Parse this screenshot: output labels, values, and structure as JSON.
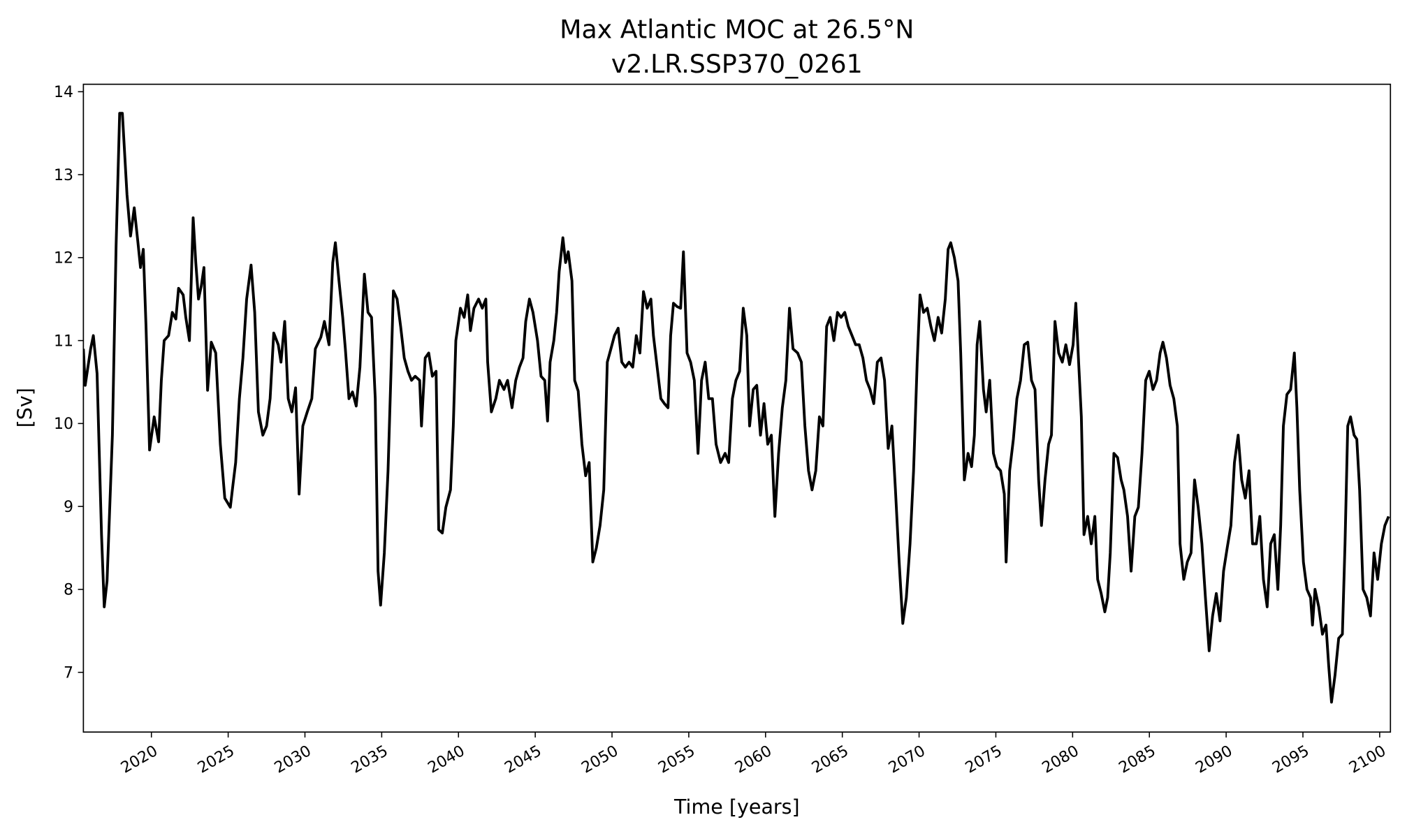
{
  "chart_data": {
    "type": "line",
    "title": "Max Atlantic MOC at 26.5°N",
    "subtitle": "v2.LR.SSP370_0261",
    "xlabel": "Time [years]",
    "ylabel": "[Sv]",
    "xlim": [
      2015.57,
      2100.7
    ],
    "ylim": [
      6.28,
      14.09
    ],
    "grid": false,
    "line_color": "#000000",
    "xticks": [
      2020,
      2025,
      2030,
      2035,
      2040,
      2045,
      2050,
      2055,
      2060,
      2065,
      2070,
      2075,
      2080,
      2085,
      2090,
      2095,
      2100
    ],
    "yticks": [
      7,
      8,
      9,
      10,
      11,
      12,
      13,
      14
    ],
    "x": [
      2015.57,
      2015.69,
      2016.04,
      2016.22,
      2016.46,
      2016.75,
      2016.93,
      2017.11,
      2017.46,
      2017.7,
      2017.93,
      2018.11,
      2018.41,
      2018.64,
      2018.88,
      2019.11,
      2019.29,
      2019.47,
      2019.65,
      2019.88,
      2020.18,
      2020.47,
      2020.65,
      2020.83,
      2021.12,
      2021.36,
      2021.59,
      2021.77,
      2022.07,
      2022.24,
      2022.48,
      2022.72,
      2022.89,
      2023.07,
      2023.25,
      2023.42,
      2023.66,
      2023.9,
      2024.19,
      2024.49,
      2024.78,
      2025.14,
      2025.31,
      2025.49,
      2025.73,
      2025.96,
      2026.2,
      2026.49,
      2026.73,
      2026.97,
      2027.26,
      2027.5,
      2027.73,
      2027.97,
      2028.26,
      2028.44,
      2028.68,
      2028.91,
      2029.15,
      2029.39,
      2029.62,
      2029.86,
      2030.15,
      2030.45,
      2030.68,
      2031.04,
      2031.27,
      2031.57,
      2031.81,
      2031.98,
      2032.22,
      2032.46,
      2032.63,
      2032.87,
      2033.1,
      2033.34,
      2033.58,
      2033.87,
      2034.11,
      2034.34,
      2034.58,
      2034.76,
      2034.93,
      2035.17,
      2035.41,
      2035.64,
      2035.76,
      2036.0,
      2036.23,
      2036.47,
      2036.71,
      2036.94,
      2037.18,
      2037.47,
      2037.59,
      2037.83,
      2038.06,
      2038.3,
      2038.54,
      2038.71,
      2038.95,
      2039.18,
      2039.48,
      2039.66,
      2039.83,
      2040.13,
      2040.37,
      2040.6,
      2040.78,
      2041.01,
      2041.31,
      2041.55,
      2041.78,
      2041.9,
      2042.14,
      2042.43,
      2042.67,
      2042.96,
      2043.2,
      2043.49,
      2043.73,
      2043.97,
      2044.2,
      2044.38,
      2044.62,
      2044.85,
      2045.15,
      2045.38,
      2045.62,
      2045.8,
      2045.97,
      2046.21,
      2046.39,
      2046.56,
      2046.8,
      2046.98,
      2047.15,
      2047.39,
      2047.57,
      2047.8,
      2048.04,
      2048.28,
      2048.51,
      2048.75,
      2048.98,
      2049.22,
      2049.46,
      2049.69,
      2049.93,
      2050.16,
      2050.4,
      2050.64,
      2050.87,
      2051.11,
      2051.35,
      2051.58,
      2051.82,
      2052.05,
      2052.29,
      2052.53,
      2052.7,
      2052.94,
      2053.18,
      2053.41,
      2053.65,
      2053.82,
      2054.0,
      2054.24,
      2054.47,
      2054.65,
      2054.89,
      2055.12,
      2055.36,
      2055.6,
      2055.83,
      2056.07,
      2056.3,
      2056.54,
      2056.78,
      2057.07,
      2057.37,
      2057.6,
      2057.84,
      2058.07,
      2058.31,
      2058.55,
      2058.78,
      2058.96,
      2059.2,
      2059.43,
      2059.67,
      2059.9,
      2060.14,
      2060.38,
      2060.61,
      2060.85,
      2061.09,
      2061.32,
      2061.56,
      2061.79,
      2062.09,
      2062.33,
      2062.56,
      2062.8,
      2063.03,
      2063.27,
      2063.51,
      2063.74,
      2063.98,
      2064.21,
      2064.45,
      2064.69,
      2064.92,
      2065.16,
      2065.39,
      2065.63,
      2065.87,
      2066.1,
      2066.34,
      2066.57,
      2066.81,
      2067.05,
      2067.28,
      2067.52,
      2067.75,
      2067.99,
      2068.23,
      2068.46,
      2068.7,
      2068.94,
      2069.17,
      2069.41,
      2069.64,
      2069.88,
      2070.06,
      2070.29,
      2070.53,
      2070.77,
      2071.0,
      2071.24,
      2071.47,
      2071.71,
      2071.89,
      2072.06,
      2072.3,
      2072.54,
      2072.71,
      2072.95,
      2073.19,
      2073.42,
      2073.6,
      2073.78,
      2073.95,
      2074.19,
      2074.37,
      2074.6,
      2074.84,
      2075.07,
      2075.31,
      2075.55,
      2075.67,
      2075.9,
      2076.14,
      2076.37,
      2076.61,
      2076.85,
      2077.08,
      2077.32,
      2077.55,
      2077.79,
      2077.97,
      2078.2,
      2078.44,
      2078.62,
      2078.85,
      2079.09,
      2079.33,
      2079.56,
      2079.8,
      2080.03,
      2080.21,
      2080.39,
      2080.57,
      2080.74,
      2080.98,
      2081.21,
      2081.45,
      2081.63,
      2081.86,
      2082.1,
      2082.28,
      2082.45,
      2082.69,
      2082.93,
      2083.16,
      2083.34,
      2083.58,
      2083.81,
      2084.05,
      2084.28,
      2084.52,
      2084.76,
      2084.99,
      2085.23,
      2085.47,
      2085.7,
      2085.88,
      2086.11,
      2086.35,
      2086.59,
      2086.82,
      2087.0,
      2087.24,
      2087.47,
      2087.71,
      2087.94,
      2088.18,
      2088.42,
      2088.65,
      2088.89,
      2089.12,
      2089.36,
      2089.6,
      2089.83,
      2090.07,
      2090.31,
      2090.54,
      2090.78,
      2091.01,
      2091.25,
      2091.49,
      2091.72,
      2091.96,
      2092.19,
      2092.43,
      2092.67,
      2092.9,
      2093.14,
      2093.37,
      2093.55,
      2093.73,
      2093.96,
      2094.2,
      2094.44,
      2094.61,
      2094.79,
      2095.03,
      2095.26,
      2095.5,
      2095.62,
      2095.79,
      2096.03,
      2096.27,
      2096.5,
      2096.68,
      2096.86,
      2097.09,
      2097.33,
      2097.57,
      2097.74,
      2097.92,
      2098.1,
      2098.33,
      2098.51,
      2098.69,
      2098.92,
      2099.16,
      2099.4,
      2099.63,
      2099.87,
      2100.11,
      2100.34,
      2100.58
    ],
    "y": [
      10.9,
      10.46,
      10.9,
      11.06,
      10.6,
      8.66,
      7.79,
      8.1,
      9.86,
      12.15,
      13.74,
      13.74,
      12.76,
      12.26,
      12.6,
      12.2,
      11.88,
      12.1,
      11.17,
      9.68,
      10.08,
      9.78,
      10.52,
      11.0,
      11.06,
      11.34,
      11.26,
      11.63,
      11.55,
      11.28,
      11.0,
      12.48,
      11.94,
      11.5,
      11.66,
      11.88,
      10.4,
      10.98,
      10.85,
      9.75,
      9.1,
      8.99,
      9.26,
      9.53,
      10.3,
      10.79,
      11.5,
      11.91,
      11.34,
      10.14,
      9.86,
      9.97,
      10.3,
      11.09,
      10.95,
      10.74,
      11.23,
      10.3,
      10.14,
      10.43,
      9.15,
      9.97,
      10.14,
      10.3,
      10.9,
      11.04,
      11.23,
      10.95,
      11.94,
      12.18,
      11.72,
      11.28,
      10.9,
      10.3,
      10.38,
      10.21,
      10.68,
      11.8,
      11.34,
      11.28,
      10.3,
      8.22,
      7.81,
      8.44,
      9.43,
      10.85,
      11.6,
      11.5,
      11.17,
      10.79,
      10.63,
      10.52,
      10.57,
      10.52,
      9.97,
      10.79,
      10.85,
      10.57,
      10.63,
      8.72,
      8.68,
      8.99,
      9.2,
      9.97,
      11.0,
      11.39,
      11.28,
      11.55,
      11.12,
      11.39,
      11.5,
      11.39,
      11.5,
      10.74,
      10.14,
      10.3,
      10.52,
      10.41,
      10.52,
      10.19,
      10.52,
      10.68,
      10.79,
      11.23,
      11.5,
      11.34,
      11.0,
      10.57,
      10.52,
      10.03,
      10.74,
      11.0,
      11.34,
      11.83,
      12.24,
      11.94,
      12.07,
      11.72,
      10.52,
      10.39,
      9.75,
      9.37,
      9.53,
      8.33,
      8.5,
      8.77,
      9.2,
      10.74,
      10.9,
      11.06,
      11.15,
      10.74,
      10.68,
      10.74,
      10.68,
      11.06,
      10.85,
      11.59,
      11.39,
      11.5,
      11.06,
      10.68,
      10.3,
      10.24,
      10.19,
      11.06,
      11.45,
      11.41,
      11.39,
      12.07,
      10.85,
      10.74,
      10.52,
      9.64,
      10.52,
      10.74,
      10.3,
      10.3,
      9.75,
      9.53,
      9.64,
      9.53,
      10.3,
      10.52,
      10.63,
      11.39,
      11.06,
      9.97,
      10.41,
      10.46,
      9.86,
      10.24,
      9.75,
      9.86,
      8.88,
      9.64,
      10.19,
      10.52,
      11.39,
      10.9,
      10.85,
      10.74,
      9.97,
      9.43,
      9.2,
      9.43,
      10.08,
      9.97,
      11.17,
      11.28,
      11.0,
      11.34,
      11.28,
      11.34,
      11.17,
      11.06,
      10.95,
      10.95,
      10.79,
      10.52,
      10.41,
      10.24,
      10.74,
      10.79,
      10.52,
      9.7,
      9.97,
      9.2,
      8.33,
      7.59,
      7.9,
      8.55,
      9.43,
      10.74,
      11.55,
      11.34,
      11.39,
      11.17,
      11.0,
      11.28,
      11.09,
      11.5,
      12.1,
      12.18,
      12.0,
      11.72,
      10.85,
      9.32,
      9.64,
      9.48,
      9.86,
      10.95,
      11.23,
      10.41,
      10.14,
      10.52,
      9.64,
      9.48,
      9.43,
      9.15,
      8.33,
      9.43,
      9.81,
      10.3,
      10.52,
      10.95,
      10.98,
      10.52,
      10.41,
      9.32,
      8.77,
      9.32,
      9.75,
      9.86,
      11.23,
      10.85,
      10.74,
      10.95,
      10.71,
      10.95,
      11.45,
      10.74,
      10.08,
      8.66,
      8.88,
      8.55,
      8.88,
      8.12,
      7.95,
      7.73,
      7.9,
      8.44,
      9.64,
      9.59,
      9.32,
      9.2,
      8.88,
      8.22,
      8.88,
      8.99,
      9.64,
      10.52,
      10.63,
      10.41,
      10.52,
      10.85,
      10.98,
      10.79,
      10.46,
      10.3,
      9.97,
      8.55,
      8.12,
      8.33,
      8.44,
      9.32,
      8.99,
      8.55,
      7.9,
      7.26,
      7.68,
      7.95,
      7.62,
      8.22,
      8.5,
      8.77,
      9.53,
      9.86,
      9.32,
      9.1,
      9.43,
      8.55,
      8.55,
      8.88,
      8.12,
      7.79,
      8.55,
      8.66,
      8.0,
      8.77,
      9.97,
      10.35,
      10.41,
      10.85,
      10.19,
      9.2,
      8.33,
      8.0,
      7.9,
      7.57,
      8.0,
      7.79,
      7.46,
      7.57,
      7.08,
      6.64,
      6.97,
      7.41,
      7.46,
      8.55,
      9.97,
      10.08,
      9.86,
      9.81,
      9.2,
      8.0,
      7.9,
      7.68,
      8.44,
      8.12,
      8.55,
      8.77,
      8.88
    ]
  }
}
